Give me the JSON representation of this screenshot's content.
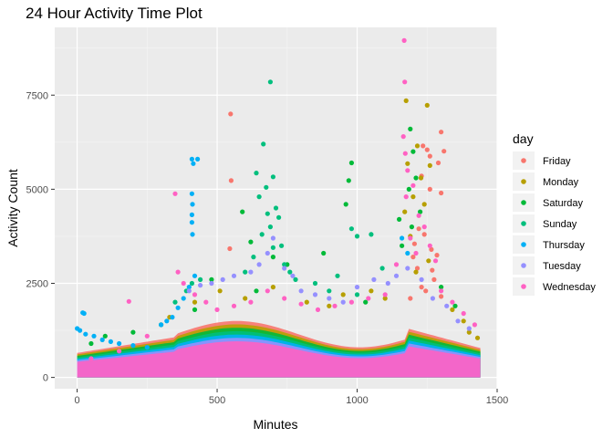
{
  "chart_data": {
    "type": "scatter",
    "title": "24 Hour Activity Time Plot",
    "xlabel": "Minutes",
    "ylabel": "Activity Count",
    "xlim": [
      -80,
      1500
    ],
    "ylim": [
      -300,
      9300
    ],
    "x_ticks": [
      0,
      500,
      1000,
      1500
    ],
    "x_tick_labels": [
      "0",
      "500",
      "1000",
      "1500"
    ],
    "y_ticks": [
      0,
      2500,
      5000,
      7500
    ],
    "y_tick_labels": [
      "0",
      "2500",
      "5000",
      "7500"
    ],
    "grid": true,
    "legend": {
      "title": "day",
      "position": "right"
    },
    "series": [
      {
        "name": "Friday",
        "color": "#F8766D",
        "points": [
          [
            548,
            7000
          ],
          [
            550,
            5230
          ],
          [
            545,
            3420
          ],
          [
            1300,
            6520
          ],
          [
            1310,
            6010
          ],
          [
            1250,
            6050
          ],
          [
            1235,
            6150
          ],
          [
            1260,
            5880
          ],
          [
            1290,
            5700
          ],
          [
            1230,
            5350
          ],
          [
            1260,
            5000
          ],
          [
            1300,
            4900
          ],
          [
            1220,
            3950
          ],
          [
            1240,
            3800
          ],
          [
            1265,
            3400
          ],
          [
            1200,
            3200
          ],
          [
            1285,
            3250
          ],
          [
            1215,
            2900
          ],
          [
            1275,
            2600
          ],
          [
            1245,
            2300
          ],
          [
            1190,
            2100
          ],
          [
            1300,
            2150
          ],
          [
            1230,
            2400
          ],
          [
            1268,
            2850
          ],
          [
            1205,
            3550
          ]
        ]
      },
      {
        "name": "Monday",
        "color": "#B79F00",
        "points": [
          [
            1175,
            7350
          ],
          [
            1250,
            7230
          ],
          [
            1215,
            6150
          ],
          [
            1260,
            5630
          ],
          [
            1180,
            5680
          ],
          [
            1228,
            5300
          ],
          [
            1200,
            4800
          ],
          [
            1170,
            4400
          ],
          [
            1240,
            4600
          ],
          [
            1190,
            3750
          ],
          [
            1255,
            3100
          ],
          [
            1210,
            2800
          ],
          [
            1340,
            1800
          ],
          [
            1380,
            1500
          ],
          [
            1400,
            1200
          ],
          [
            1430,
            1050
          ],
          [
            1100,
            2100
          ],
          [
            1050,
            2300
          ],
          [
            950,
            2200
          ],
          [
            900,
            1900
          ],
          [
            820,
            2000
          ],
          [
            700,
            2400
          ],
          [
            600,
            2100
          ],
          [
            510,
            2300
          ],
          [
            420,
            2000
          ],
          [
            330,
            1600
          ]
        ]
      },
      {
        "name": "Saturday",
        "color": "#00BA38",
        "points": [
          [
            1190,
            6600
          ],
          [
            1200,
            6000
          ],
          [
            1210,
            5300
          ],
          [
            1185,
            5000
          ],
          [
            1150,
            4200
          ],
          [
            1225,
            4400
          ],
          [
            1195,
            4000
          ],
          [
            1160,
            3500
          ],
          [
            980,
            5700
          ],
          [
            970,
            5230
          ],
          [
            960,
            4600
          ],
          [
            590,
            4400
          ],
          [
            620,
            3600
          ],
          [
            700,
            3200
          ],
          [
            750,
            3000
          ],
          [
            880,
            3300
          ],
          [
            1300,
            2400
          ],
          [
            1350,
            1900
          ],
          [
            1030,
            2000
          ],
          [
            640,
            2300
          ],
          [
            480,
            2600
          ],
          [
            420,
            1800
          ],
          [
            300,
            1400
          ],
          [
            200,
            1200
          ],
          [
            100,
            1100
          ],
          [
            50,
            900
          ]
        ]
      },
      {
        "name": "Sunday",
        "color": "#00BF7D",
        "points": [
          [
            690,
            7850
          ],
          [
            665,
            6200
          ],
          [
            640,
            5430
          ],
          [
            700,
            5330
          ],
          [
            675,
            5050
          ],
          [
            650,
            4800
          ],
          [
            710,
            4500
          ],
          [
            680,
            4350
          ],
          [
            720,
            4250
          ],
          [
            690,
            4000
          ],
          [
            660,
            3800
          ],
          [
            700,
            3450
          ],
          [
            730,
            3500
          ],
          [
            630,
            3200
          ],
          [
            740,
            3000
          ],
          [
            760,
            2800
          ],
          [
            780,
            2600
          ],
          [
            1000,
            3750
          ],
          [
            1050,
            3800
          ],
          [
            980,
            3950
          ],
          [
            930,
            2700
          ],
          [
            1090,
            2900
          ],
          [
            900,
            2300
          ],
          [
            850,
            2500
          ],
          [
            1000,
            2200
          ],
          [
            440,
            2600
          ],
          [
            410,
            2500
          ],
          [
            390,
            2300
          ],
          [
            350,
            2000
          ],
          [
            600,
            2800
          ]
        ]
      },
      {
        "name": "Thursday",
        "color": "#00B0F6",
        "points": [
          [
            410,
            5800
          ],
          [
            430,
            5800
          ],
          [
            415,
            5680
          ],
          [
            410,
            4880
          ],
          [
            412,
            4600
          ],
          [
            410,
            4320
          ],
          [
            410,
            4120
          ],
          [
            412,
            3800
          ],
          [
            420,
            2700
          ],
          [
            400,
            2400
          ],
          [
            380,
            2100
          ],
          [
            360,
            1850
          ],
          [
            340,
            1600
          ],
          [
            320,
            1500
          ],
          [
            300,
            1400
          ],
          [
            20,
            1720
          ],
          [
            25,
            1700
          ],
          [
            0,
            1300
          ],
          [
            10,
            1250
          ],
          [
            30,
            1150
          ],
          [
            60,
            1100
          ],
          [
            90,
            1000
          ],
          [
            120,
            950
          ],
          [
            150,
            900
          ],
          [
            200,
            850
          ],
          [
            250,
            800
          ],
          [
            1160,
            3700
          ],
          [
            1180,
            3300
          ]
        ]
      },
      {
        "name": "Tuesday",
        "color": "#9590FF",
        "points": [
          [
            700,
            3700
          ],
          [
            680,
            3300
          ],
          [
            650,
            3000
          ],
          [
            620,
            2800
          ],
          [
            560,
            2700
          ],
          [
            520,
            2600
          ],
          [
            480,
            2500
          ],
          [
            440,
            2450
          ],
          [
            400,
            2300
          ],
          [
            740,
            2900
          ],
          [
            770,
            2700
          ],
          [
            800,
            2300
          ],
          [
            850,
            2200
          ],
          [
            900,
            2100
          ],
          [
            950,
            2000
          ],
          [
            1000,
            2400
          ],
          [
            1060,
            2600
          ],
          [
            1110,
            2500
          ],
          [
            1140,
            2700
          ],
          [
            1180,
            2900
          ],
          [
            1230,
            2600
          ],
          [
            1270,
            2100
          ],
          [
            1320,
            1900
          ],
          [
            1360,
            1500
          ],
          [
            1400,
            1300
          ]
        ]
      },
      {
        "name": "Wednesday",
        "color": "#FF61C3",
        "points": [
          [
            1168,
            8950
          ],
          [
            1170,
            7850
          ],
          [
            1165,
            6400
          ],
          [
            1172,
            5950
          ],
          [
            1180,
            5500
          ],
          [
            1200,
            5100
          ],
          [
            1175,
            4800
          ],
          [
            1220,
            4300
          ],
          [
            1240,
            4000
          ],
          [
            1190,
            3700
          ],
          [
            1260,
            3500
          ],
          [
            1210,
            3300
          ],
          [
            1280,
            3100
          ],
          [
            350,
            4880
          ],
          [
            185,
            2020
          ],
          [
            360,
            2800
          ],
          [
            380,
            2500
          ],
          [
            420,
            2200
          ],
          [
            460,
            2000
          ],
          [
            500,
            1800
          ],
          [
            560,
            1900
          ],
          [
            620,
            2000
          ],
          [
            680,
            2300
          ],
          [
            740,
            2100
          ],
          [
            800,
            1950
          ],
          [
            860,
            1800
          ],
          [
            920,
            1900
          ],
          [
            980,
            2000
          ],
          [
            1040,
            2100
          ],
          [
            1100,
            2200
          ],
          [
            1140,
            3000
          ],
          [
            1300,
            2300
          ],
          [
            1340,
            2000
          ],
          [
            1380,
            1700
          ],
          [
            1420,
            1400
          ],
          [
            250,
            1100
          ],
          [
            150,
            700
          ],
          [
            50,
            500
          ]
        ]
      }
    ]
  }
}
